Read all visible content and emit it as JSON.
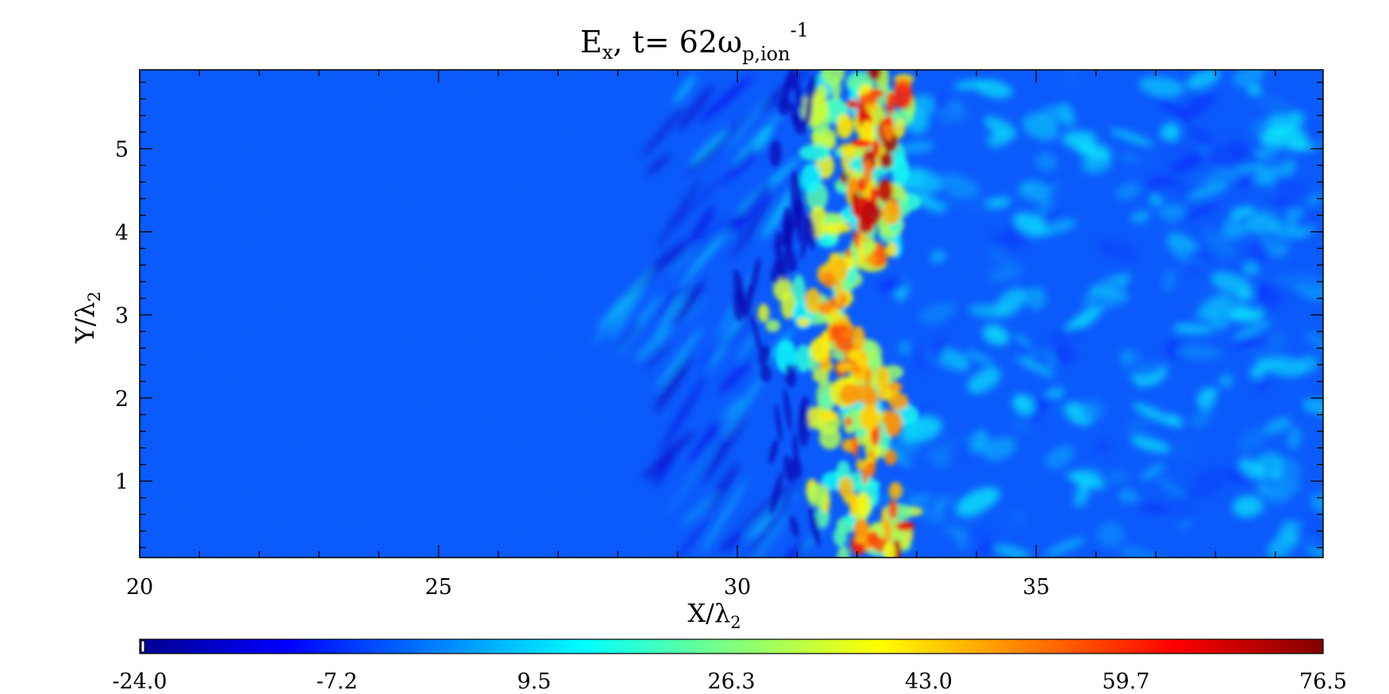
{
  "chart_data": {
    "type": "heatmap",
    "title": {
      "base": "E",
      "base_sub": "x",
      "mid": ", t=   62ω",
      "mid_sub": "p,ion",
      "sup": "-1"
    },
    "xlabel": {
      "base": "X/λ",
      "sub": "2"
    },
    "ylabel": {
      "base": "Y/λ",
      "sub": "2"
    },
    "xlim": [
      20,
      39.8
    ],
    "ylim": [
      0.08,
      5.95
    ],
    "x_ticks": [
      20,
      25,
      30,
      35
    ],
    "x_tick_labels": [
      "20",
      "25",
      "30",
      "35"
    ],
    "x_minor_step": 1,
    "y_ticks": [
      1,
      2,
      3,
      4,
      5
    ],
    "y_tick_labels": [
      "1",
      "2",
      "3",
      "4",
      "5"
    ],
    "y_minor_step": 0.2,
    "colorbar": {
      "min": -24.0,
      "max": 76.5,
      "tick_labels": [
        "-24.0",
        "-7.2",
        "9.5",
        "26.3",
        "43.0",
        "59.7",
        "76.5"
      ],
      "colormap": "jet",
      "colors": [
        "#00008f",
        "#0000ff",
        "#007fff",
        "#00ffff",
        "#7fff7f",
        "#ffff00",
        "#ff7f00",
        "#ff0000",
        "#800000"
      ]
    },
    "background_value": -3,
    "field_description_values": {
      "dark_filament_min": -20,
      "shock_front_peak": 76
    },
    "shock_front_x": 31.5
  }
}
